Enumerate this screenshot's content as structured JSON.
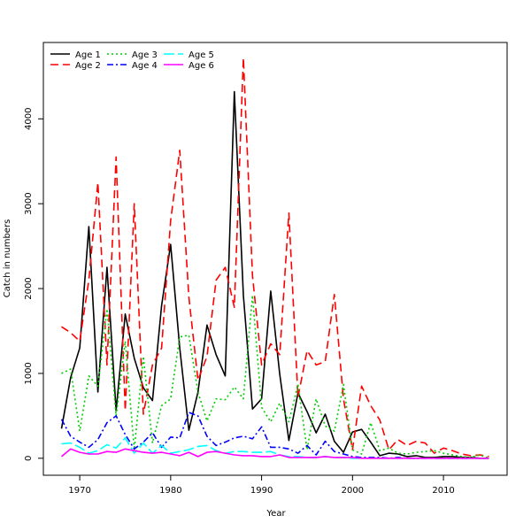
{
  "chart_data": {
    "type": "line",
    "title": "",
    "xlabel": "Year",
    "ylabel": "Catch in numbers",
    "xlim": [
      1966,
      2017
    ],
    "ylim": [
      -200,
      4900
    ],
    "x_ticks": [
      1970,
      1980,
      1990,
      2000,
      2010
    ],
    "y_ticks": [
      0,
      1000,
      2000,
      3000,
      4000
    ],
    "grid": false,
    "legend_position": "top-left",
    "x": [
      1968,
      1969,
      1970,
      1971,
      1972,
      1973,
      1974,
      1975,
      1976,
      1977,
      1978,
      1979,
      1980,
      1981,
      1982,
      1983,
      1984,
      1985,
      1986,
      1987,
      1988,
      1989,
      1990,
      1991,
      1992,
      1993,
      1994,
      1995,
      1996,
      1997,
      1998,
      1999,
      2000,
      2001,
      2002,
      2003,
      2004,
      2005,
      2006,
      2007,
      2008,
      2009,
      2010,
      2011,
      2012,
      2013,
      2014,
      2015
    ],
    "series": [
      {
        "name": "Age 1",
        "color": "#000000",
        "dash": "solid",
        "values": [
          350,
          950,
          1300,
          2730,
          780,
          2250,
          560,
          1700,
          1180,
          830,
          680,
          1800,
          2520,
          1300,
          330,
          780,
          1570,
          1220,
          970,
          4320,
          1920,
          580,
          700,
          1970,
          990,
          210,
          770,
          550,
          300,
          520,
          200,
          70,
          310,
          340,
          190,
          30,
          60,
          50,
          20,
          30,
          10,
          10,
          20,
          20,
          10,
          10,
          0,
          0
        ]
      },
      {
        "name": "Age 2",
        "color": "#ff0000",
        "dash": "long",
        "values": [
          1550,
          1480,
          1380,
          2100,
          3250,
          1100,
          3550,
          560,
          3000,
          520,
          1100,
          1300,
          2800,
          3630,
          1900,
          920,
          1200,
          2100,
          2250,
          1780,
          4720,
          2150,
          1100,
          1350,
          1220,
          2890,
          720,
          1270,
          1100,
          1140,
          1930,
          700,
          100,
          850,
          620,
          450,
          100,
          220,
          150,
          200,
          180,
          60,
          120,
          90,
          50,
          30,
          40,
          20
        ]
      },
      {
        "name": "Age 3",
        "color": "#00cd00",
        "dash": "dotted",
        "values": [
          1000,
          1050,
          320,
          970,
          850,
          1760,
          500,
          1380,
          100,
          1200,
          180,
          620,
          700,
          1430,
          1450,
          780,
          440,
          700,
          690,
          840,
          700,
          1920,
          600,
          430,
          650,
          430,
          870,
          100,
          700,
          380,
          320,
          870,
          100,
          50,
          420,
          90,
          120,
          60,
          50,
          70,
          80,
          90,
          60,
          40,
          20,
          10,
          40,
          0
        ]
      },
      {
        "name": "Age 4",
        "color": "#0000ff",
        "dash": "dashdot",
        "values": [
          460,
          260,
          190,
          130,
          220,
          420,
          500,
          280,
          110,
          190,
          300,
          130,
          250,
          240,
          540,
          500,
          260,
          150,
          190,
          240,
          260,
          230,
          370,
          130,
          130,
          110,
          60,
          150,
          40,
          200,
          80,
          50,
          20,
          10,
          10,
          10,
          0,
          10,
          0,
          0,
          0,
          0,
          0,
          0,
          0,
          0,
          0,
          0
        ]
      },
      {
        "name": "Age 5",
        "color": "#00ffff",
        "dash": "longdash",
        "values": [
          170,
          180,
          130,
          60,
          90,
          160,
          120,
          240,
          60,
          180,
          60,
          150,
          60,
          80,
          100,
          140,
          150,
          90,
          60,
          80,
          80,
          70,
          70,
          80,
          40,
          20,
          20,
          10,
          10,
          20,
          10,
          10,
          0,
          0,
          0,
          0,
          0,
          0,
          0,
          0,
          0,
          0,
          0,
          0,
          0,
          0,
          0,
          0
        ]
      },
      {
        "name": "Age 6",
        "color": "#ff00ff",
        "dash": "solid",
        "values": [
          20,
          110,
          70,
          50,
          50,
          80,
          70,
          110,
          90,
          70,
          60,
          70,
          50,
          30,
          70,
          20,
          70,
          80,
          60,
          40,
          30,
          30,
          20,
          20,
          40,
          10,
          10,
          10,
          10,
          20,
          10,
          10,
          10,
          0,
          0,
          0,
          0,
          0,
          0,
          0,
          0,
          0,
          0,
          0,
          0,
          0,
          0,
          0
        ]
      }
    ]
  }
}
